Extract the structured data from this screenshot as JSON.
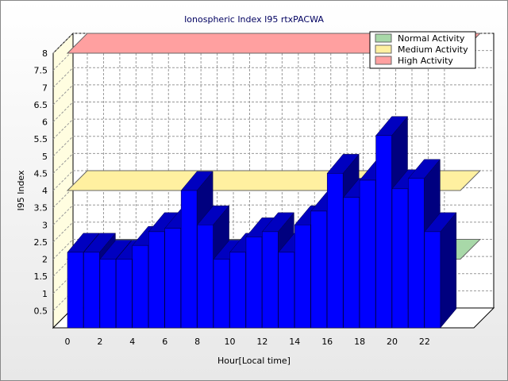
{
  "chart_data": {
    "type": "bar3d",
    "title": "Ionospheric Index I95 rtxPACWA",
    "x_label": "Hour[Local time]",
    "y_label": "I95 Index",
    "categories": [
      0,
      null,
      2,
      null,
      4,
      null,
      6,
      null,
      8,
      null,
      10,
      null,
      12,
      null,
      14,
      null,
      16,
      null,
      18,
      null,
      20,
      null,
      22
    ],
    "values": [
      2.2,
      2.2,
      2.0,
      2.0,
      2.4,
      2.8,
      2.9,
      4.0,
      3.0,
      2.0,
      2.2,
      2.65,
      2.8,
      2.2,
      3.0,
      3.4,
      4.5,
      3.8,
      4.3,
      5.6,
      4.05,
      4.35,
      2.8
    ],
    "color": "#0000ff",
    "ylim": [
      0,
      8
    ],
    "yticks": [
      0.5,
      1,
      1.5,
      2,
      2.5,
      3,
      3.5,
      4,
      4.5,
      5,
      5.5,
      6,
      6.5,
      7,
      7.5,
      8
    ],
    "grid": true,
    "thresholds": [
      {
        "name": "Normal Activity",
        "color": "#a8d8a8",
        "value": 2
      },
      {
        "name": "Medium Activity",
        "color": "#fff0a0",
        "value": 4
      },
      {
        "name": "High Activity",
        "color": "#ffa0a0",
        "value": 8
      }
    ],
    "legend": "top-right"
  }
}
